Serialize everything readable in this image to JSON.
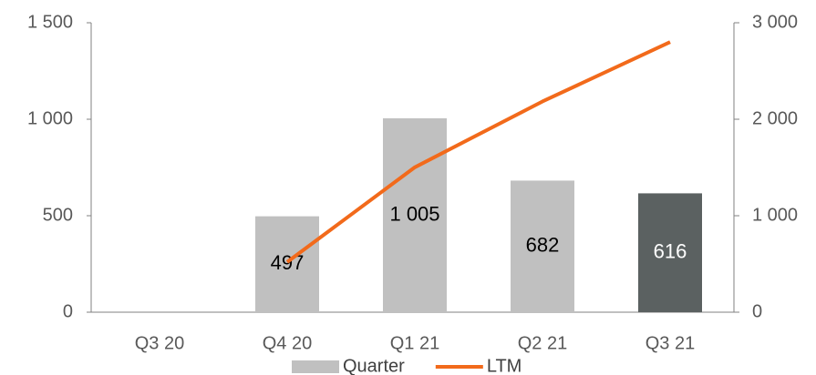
{
  "chart_data": {
    "type": "bar",
    "categories": [
      "Q3 20",
      "Q4 20",
      "Q1 21",
      "Q2 21",
      "Q3 21"
    ],
    "series": [
      {
        "name": "Quarter",
        "type": "bar",
        "color": "#c0c0c0",
        "colors": [
          "#c0c0c0",
          "#c0c0c0",
          "#c0c0c0",
          "#c0c0c0",
          "#5b6161"
        ],
        "values": [
          null,
          497,
          1005,
          682,
          616
        ],
        "value_labels": [
          null,
          "497",
          "1 005",
          "682",
          "616"
        ]
      },
      {
        "name": "LTM",
        "type": "line",
        "axis": "y2",
        "color": "#f26a1b",
        "values": [
          null,
          520,
          1502,
          2184,
          2800
        ]
      }
    ],
    "ylim": [
      0,
      1500
    ],
    "yticks": [
      0,
      500,
      {
        "value": 1000,
        "label": "1 000"
      },
      {
        "value": 1500,
        "label": "1 500"
      }
    ],
    "y2lim": [
      0,
      3000
    ],
    "y2ticks": [
      0,
      {
        "value": 1000,
        "label": "1 000"
      },
      {
        "value": 2000,
        "label": "2 000"
      },
      {
        "value": 3000,
        "label": "3 000"
      }
    ],
    "legend": "bottom"
  }
}
